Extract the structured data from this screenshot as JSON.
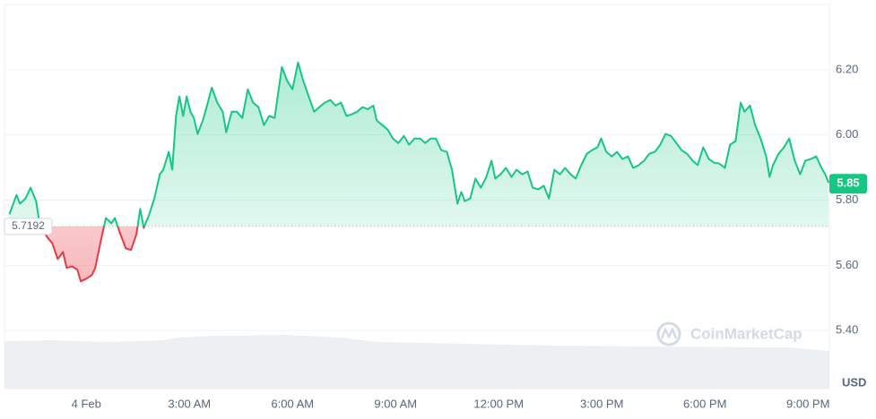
{
  "chart_data": {
    "type": "line",
    "x": [
      -2.24,
      -2.03,
      -1.93,
      -1.77,
      -1.62,
      -1.46,
      -1.36,
      -1.15,
      -0.99,
      -0.83,
      -0.68,
      -0.57,
      -0.42,
      -0.26,
      -0.16,
      0,
      0.16,
      0.26,
      0.42,
      0.57,
      0.73,
      0.83,
      0.99,
      1.15,
      1.3,
      1.46,
      1.57,
      1.67,
      1.83,
      1.98,
      2.14,
      2.24,
      2.4,
      2.5,
      2.61,
      2.71,
      2.82,
      2.92,
      3.03,
      3.13,
      3.24,
      3.39,
      3.5,
      3.65,
      3.81,
      3.97,
      4.07,
      4.23,
      4.38,
      4.54,
      4.7,
      4.85,
      5.01,
      5.17,
      5.32,
      5.48,
      5.69,
      5.84,
      6,
      6.16,
      6.31,
      6.47,
      6.63,
      6.78,
      6.94,
      7.1,
      7.25,
      7.41,
      7.57,
      7.72,
      7.88,
      8.04,
      8.19,
      8.35,
      8.45,
      8.61,
      8.77,
      8.92,
      9.08,
      9.24,
      9.39,
      9.55,
      9.71,
      9.86,
      10.02,
      10.17,
      10.33,
      10.49,
      10.64,
      10.8,
      10.91,
      11.01,
      11.17,
      11.32,
      11.48,
      11.64,
      11.79,
      11.9,
      12.05,
      12.21,
      12.37,
      12.52,
      12.68,
      12.84,
      12.99,
      13.15,
      13.31,
      13.46,
      13.62,
      13.78,
      13.93,
      14.09,
      14.24,
      14.4,
      14.56,
      14.71,
      14.87,
      14.98,
      15.13,
      15.29,
      15.44,
      15.6,
      15.76,
      15.91,
      16.07,
      16.23,
      16.38,
      16.54,
      16.7,
      16.85,
      17.01,
      17.17,
      17.32,
      17.48,
      17.64,
      17.79,
      17.95,
      18.11,
      18.26,
      18.42,
      18.58,
      18.73,
      18.89,
      19.04,
      19.15,
      19.31,
      19.46,
      19.62,
      19.78,
      19.88,
      19.98,
      20.14,
      20.3,
      20.45,
      20.61,
      20.77,
      20.92,
      21.08,
      21.24,
      21.39,
      21.5,
      21.6
    ],
    "values": [
      5.756,
      5.816,
      5.789,
      5.805,
      5.838,
      5.797,
      5.729,
      5.688,
      5.668,
      5.619,
      5.641,
      5.592,
      5.597,
      5.586,
      5.551,
      5.559,
      5.57,
      5.592,
      5.674,
      5.745,
      5.729,
      5.745,
      5.696,
      5.652,
      5.647,
      5.696,
      5.773,
      5.715,
      5.756,
      5.805,
      5.879,
      5.893,
      5.948,
      5.893,
      6.058,
      6.118,
      6.058,
      6.118,
      6.071,
      6.052,
      6.003,
      6.044,
      6.085,
      6.145,
      6.099,
      6.071,
      6.008,
      6.071,
      6.071,
      6.052,
      6.14,
      6.099,
      6.085,
      6.03,
      6.058,
      6.052,
      6.208,
      6.167,
      6.14,
      6.222,
      6.167,
      6.118,
      6.071,
      6.085,
      6.099,
      6.107,
      6.09,
      6.099,
      6.058,
      6.063,
      6.071,
      6.085,
      6.079,
      6.09,
      6.044,
      6.03,
      6.016,
      5.989,
      5.975,
      5.997,
      5.97,
      5.989,
      5.989,
      5.975,
      5.989,
      5.989,
      5.953,
      5.948,
      5.893,
      5.789,
      5.825,
      5.797,
      5.805,
      5.866,
      5.838,
      5.871,
      5.921,
      5.866,
      5.879,
      5.899,
      5.871,
      5.893,
      5.879,
      5.888,
      5.838,
      5.833,
      5.844,
      5.805,
      5.893,
      5.879,
      5.899,
      5.879,
      5.866,
      5.907,
      5.942,
      5.953,
      5.962,
      5.989,
      5.948,
      5.934,
      5.948,
      5.926,
      5.934,
      5.899,
      5.907,
      5.921,
      5.942,
      5.948,
      5.97,
      6.003,
      5.997,
      5.975,
      5.953,
      5.942,
      5.921,
      5.907,
      5.962,
      5.926,
      5.915,
      5.912,
      5.899,
      5.97,
      5.981,
      6.099,
      6.071,
      6.09,
      6.03,
      5.989,
      5.934,
      5.871,
      5.907,
      5.942,
      5.962,
      5.989,
      5.921,
      5.879,
      5.921,
      5.926,
      5.934,
      5.899,
      5.879,
      5.853
    ],
    "colors": {
      "up": "#16c784",
      "down": "#ea3943"
    },
    "reference": 5.7192,
    "last_price": 5.85,
    "currency": "USD",
    "watermark": "CoinMarketCap",
    "xlim": [
      -2.25,
      21.62
    ],
    "xticks": [
      {
        "value": 0,
        "label": "4 Feb"
      },
      {
        "value": 3,
        "label": "3:00 AM"
      },
      {
        "value": 6,
        "label": "6:00 AM"
      },
      {
        "value": 9,
        "label": "9:00 AM"
      },
      {
        "value": 12,
        "label": "12:00 PM"
      },
      {
        "value": 15,
        "label": "3:00 PM"
      },
      {
        "value": 18,
        "label": "6:00 PM"
      },
      {
        "value": 21,
        "label": "9:00 PM"
      }
    ],
    "ylim": [
      5.222,
      6.4
    ],
    "yticks": [
      {
        "value": 5.4,
        "label": "5.40"
      },
      {
        "value": 5.6,
        "label": "5.60"
      },
      {
        "value": 5.8,
        "label": "5.80"
      },
      {
        "value": 6,
        "label": "6.00"
      },
      {
        "value": 6.2,
        "label": "6.20"
      }
    ],
    "grid": true
  }
}
